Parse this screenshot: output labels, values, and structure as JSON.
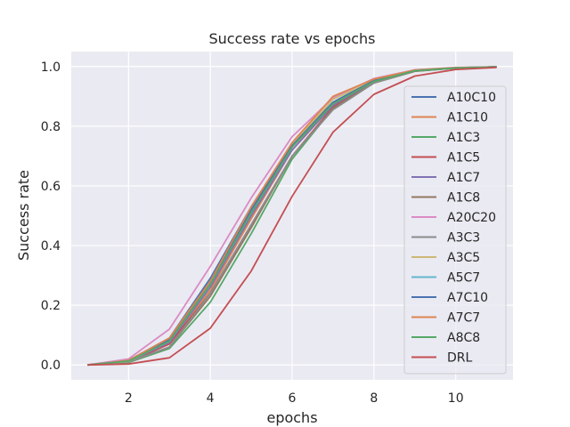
{
  "chart_data": {
    "type": "line",
    "title": "Success rate vs epochs",
    "xlabel": "epochs",
    "ylabel": "Success rate",
    "xlim": [
      0.6,
      11.4
    ],
    "ylim": [
      -0.05,
      1.05
    ],
    "xticks": [
      2,
      4,
      6,
      8,
      10
    ],
    "yticks": [
      0.0,
      0.2,
      0.4,
      0.6,
      0.8,
      1.0
    ],
    "grid": true,
    "legend_position": "center-right",
    "x": [
      1,
      2,
      3,
      4,
      5,
      6,
      7,
      8,
      9,
      10,
      11
    ],
    "series": [
      {
        "name": "A10C10",
        "color": "#4c72b0",
        "values": [
          0.0,
          0.015,
          0.09,
          0.29,
          0.53,
          0.74,
          0.88,
          0.955,
          0.988,
          0.996,
          0.999
        ]
      },
      {
        "name": "A1C10",
        "color": "#dd8452",
        "values": [
          0.0,
          0.012,
          0.07,
          0.25,
          0.49,
          0.72,
          0.875,
          0.95,
          0.986,
          0.995,
          0.999
        ]
      },
      {
        "name": "A1C3",
        "color": "#55a868",
        "values": [
          0.0,
          0.008,
          0.055,
          0.21,
          0.44,
          0.69,
          0.86,
          0.945,
          0.984,
          0.995,
          0.999
        ]
      },
      {
        "name": "A1C5",
        "color": "#c44e52",
        "values": [
          0.0,
          0.01,
          0.07,
          0.24,
          0.47,
          0.7,
          0.865,
          0.948,
          0.985,
          0.995,
          0.999
        ]
      },
      {
        "name": "A1C7",
        "color": "#8172b3",
        "values": [
          0.0,
          0.012,
          0.075,
          0.26,
          0.5,
          0.72,
          0.87,
          0.95,
          0.986,
          0.995,
          0.999
        ]
      },
      {
        "name": "A1C8",
        "color": "#937860",
        "values": [
          0.0,
          0.01,
          0.06,
          0.23,
          0.46,
          0.7,
          0.86,
          0.945,
          0.984,
          0.995,
          0.999
        ]
      },
      {
        "name": "A20C20",
        "color": "#da8bc3",
        "values": [
          0.0,
          0.02,
          0.12,
          0.33,
          0.56,
          0.765,
          0.895,
          0.96,
          0.989,
          0.997,
          0.999
        ]
      },
      {
        "name": "A3C3",
        "color": "#8c8c8c",
        "values": [
          0.0,
          0.01,
          0.06,
          0.24,
          0.47,
          0.7,
          0.855,
          0.945,
          0.985,
          0.995,
          0.999
        ]
      },
      {
        "name": "A3C5",
        "color": "#ccb974",
        "values": [
          0.0,
          0.012,
          0.08,
          0.27,
          0.52,
          0.74,
          0.89,
          0.955,
          0.987,
          0.996,
          0.999
        ]
      },
      {
        "name": "A5C7",
        "color": "#64b5cd",
        "values": [
          0.0,
          0.013,
          0.08,
          0.27,
          0.51,
          0.73,
          0.88,
          0.952,
          0.987,
          0.996,
          0.999
        ]
      },
      {
        "name": "A7C10",
        "color": "#4c72b0",
        "values": [
          0.0,
          0.014,
          0.085,
          0.28,
          0.52,
          0.735,
          0.88,
          0.953,
          0.987,
          0.996,
          0.999
        ]
      },
      {
        "name": "A7C7",
        "color": "#dd8452",
        "values": [
          0.0,
          0.015,
          0.09,
          0.28,
          0.53,
          0.745,
          0.9,
          0.958,
          0.988,
          0.996,
          0.999
        ]
      },
      {
        "name": "A8C8",
        "color": "#55a868",
        "values": [
          0.0,
          0.013,
          0.08,
          0.27,
          0.51,
          0.73,
          0.875,
          0.95,
          0.986,
          0.995,
          0.999
        ]
      },
      {
        "name": "DRL",
        "color": "#c44e52",
        "values": [
          0.0,
          0.003,
          0.024,
          0.123,
          0.315,
          0.565,
          0.78,
          0.907,
          0.968,
          0.99,
          0.997
        ]
      }
    ]
  }
}
